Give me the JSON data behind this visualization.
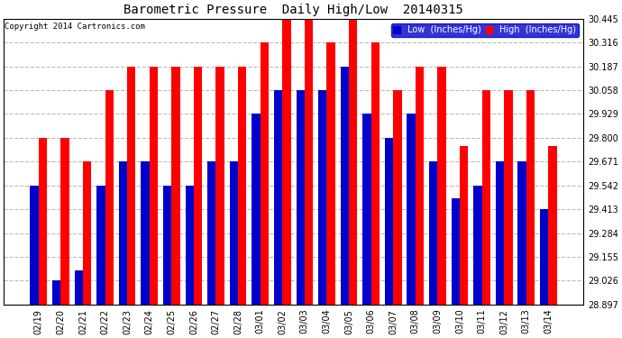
{
  "title": "Barometric Pressure  Daily High/Low  20140315",
  "copyright": "Copyright 2014 Cartronics.com",
  "ylabel_low": "Low  (Inches/Hg)",
  "ylabel_high": "High  (Inches/Hg)",
  "ylim": [
    28.897,
    30.445
  ],
  "yticks": [
    28.897,
    29.026,
    29.155,
    29.284,
    29.413,
    29.542,
    29.671,
    29.8,
    29.929,
    30.058,
    30.187,
    30.316,
    30.445
  ],
  "background_color": "#ffffff",
  "bar_color_low": "#0000cc",
  "bar_color_high": "#ff0000",
  "categories": [
    "02/19",
    "02/20",
    "02/21",
    "02/22",
    "02/23",
    "02/24",
    "02/25",
    "02/26",
    "02/27",
    "02/28",
    "03/01",
    "03/02",
    "03/03",
    "03/04",
    "03/05",
    "03/06",
    "03/07",
    "03/08",
    "03/09",
    "03/10",
    "03/11",
    "03/12",
    "03/13",
    "03/14"
  ],
  "low_values": [
    29.542,
    29.026,
    29.08,
    29.542,
    29.671,
    29.671,
    29.542,
    29.542,
    29.671,
    29.671,
    29.929,
    30.058,
    30.058,
    30.058,
    30.187,
    29.929,
    29.8,
    29.929,
    29.671,
    29.471,
    29.542,
    29.671,
    29.671,
    29.413
  ],
  "high_values": [
    29.8,
    29.8,
    29.671,
    30.058,
    30.187,
    30.187,
    30.187,
    30.187,
    30.187,
    30.187,
    30.316,
    30.445,
    30.445,
    30.316,
    30.445,
    30.316,
    30.058,
    30.187,
    30.187,
    29.755,
    30.058,
    30.058,
    30.058,
    29.755
  ],
  "figsize": [
    6.9,
    3.75
  ],
  "dpi": 100,
  "title_fontsize": 10,
  "tick_fontsize": 7,
  "bar_width": 0.38
}
